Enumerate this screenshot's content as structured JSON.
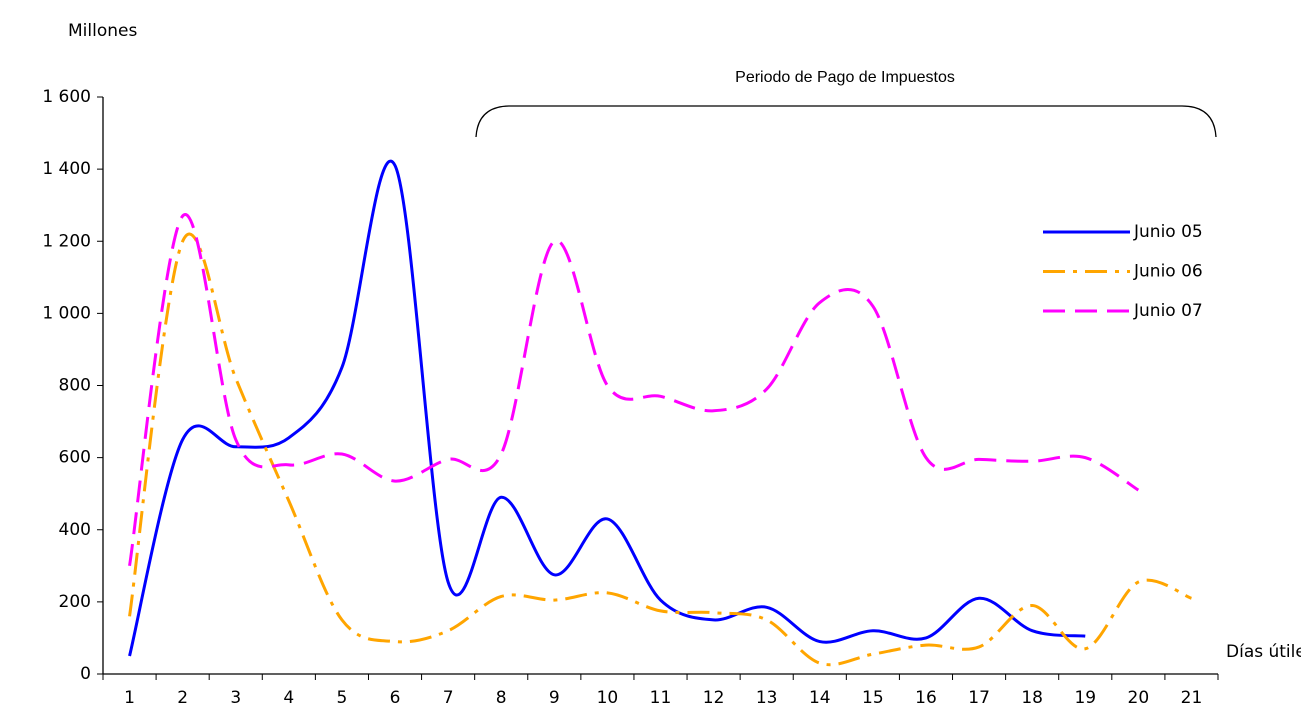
{
  "chart_data": {
    "type": "line",
    "y_label": "Millones",
    "x_label": "Días útiles",
    "annotation": "Periodo de Pago de Impuestos",
    "categories": [
      "1",
      "2",
      "3",
      "4",
      "5",
      "6",
      "7",
      "8",
      "9",
      "10",
      "11",
      "12",
      "13",
      "14",
      "15",
      "16",
      "17",
      "18",
      "19",
      "20",
      "21"
    ],
    "ylim": [
      0,
      1600
    ],
    "yticks": [
      0,
      200,
      400,
      600,
      800,
      {
        "value": 1000,
        "label": "1 000"
      },
      {
        "value": 1200,
        "label": "1 200"
      },
      {
        "value": 1400,
        "label": "1 400"
      },
      {
        "value": 1600,
        "label": "1 600"
      }
    ],
    "series": [
      {
        "name": "Junio 05",
        "color": "#0000ff",
        "dash": "solid",
        "values": [
          50,
          650,
          630,
          655,
          850,
          1410,
          255,
          490,
          275,
          430,
          205,
          150,
          185,
          90,
          120,
          100,
          210,
          120,
          105,
          null,
          null
        ]
      },
      {
        "name": "Junio 06",
        "color": "#ffa500",
        "dash": "dashdot",
        "values": [
          160,
          1200,
          820,
          480,
          150,
          90,
          120,
          215,
          205,
          225,
          175,
          170,
          150,
          30,
          55,
          80,
          75,
          190,
          70,
          255,
          210
        ]
      },
      {
        "name": "Junio 07",
        "color": "#ff00ff",
        "dash": "dashed",
        "values": [
          300,
          1270,
          650,
          580,
          610,
          535,
          595,
          610,
          1200,
          800,
          770,
          730,
          790,
          1030,
          1020,
          600,
          595,
          590,
          600,
          510,
          null
        ]
      }
    ]
  }
}
